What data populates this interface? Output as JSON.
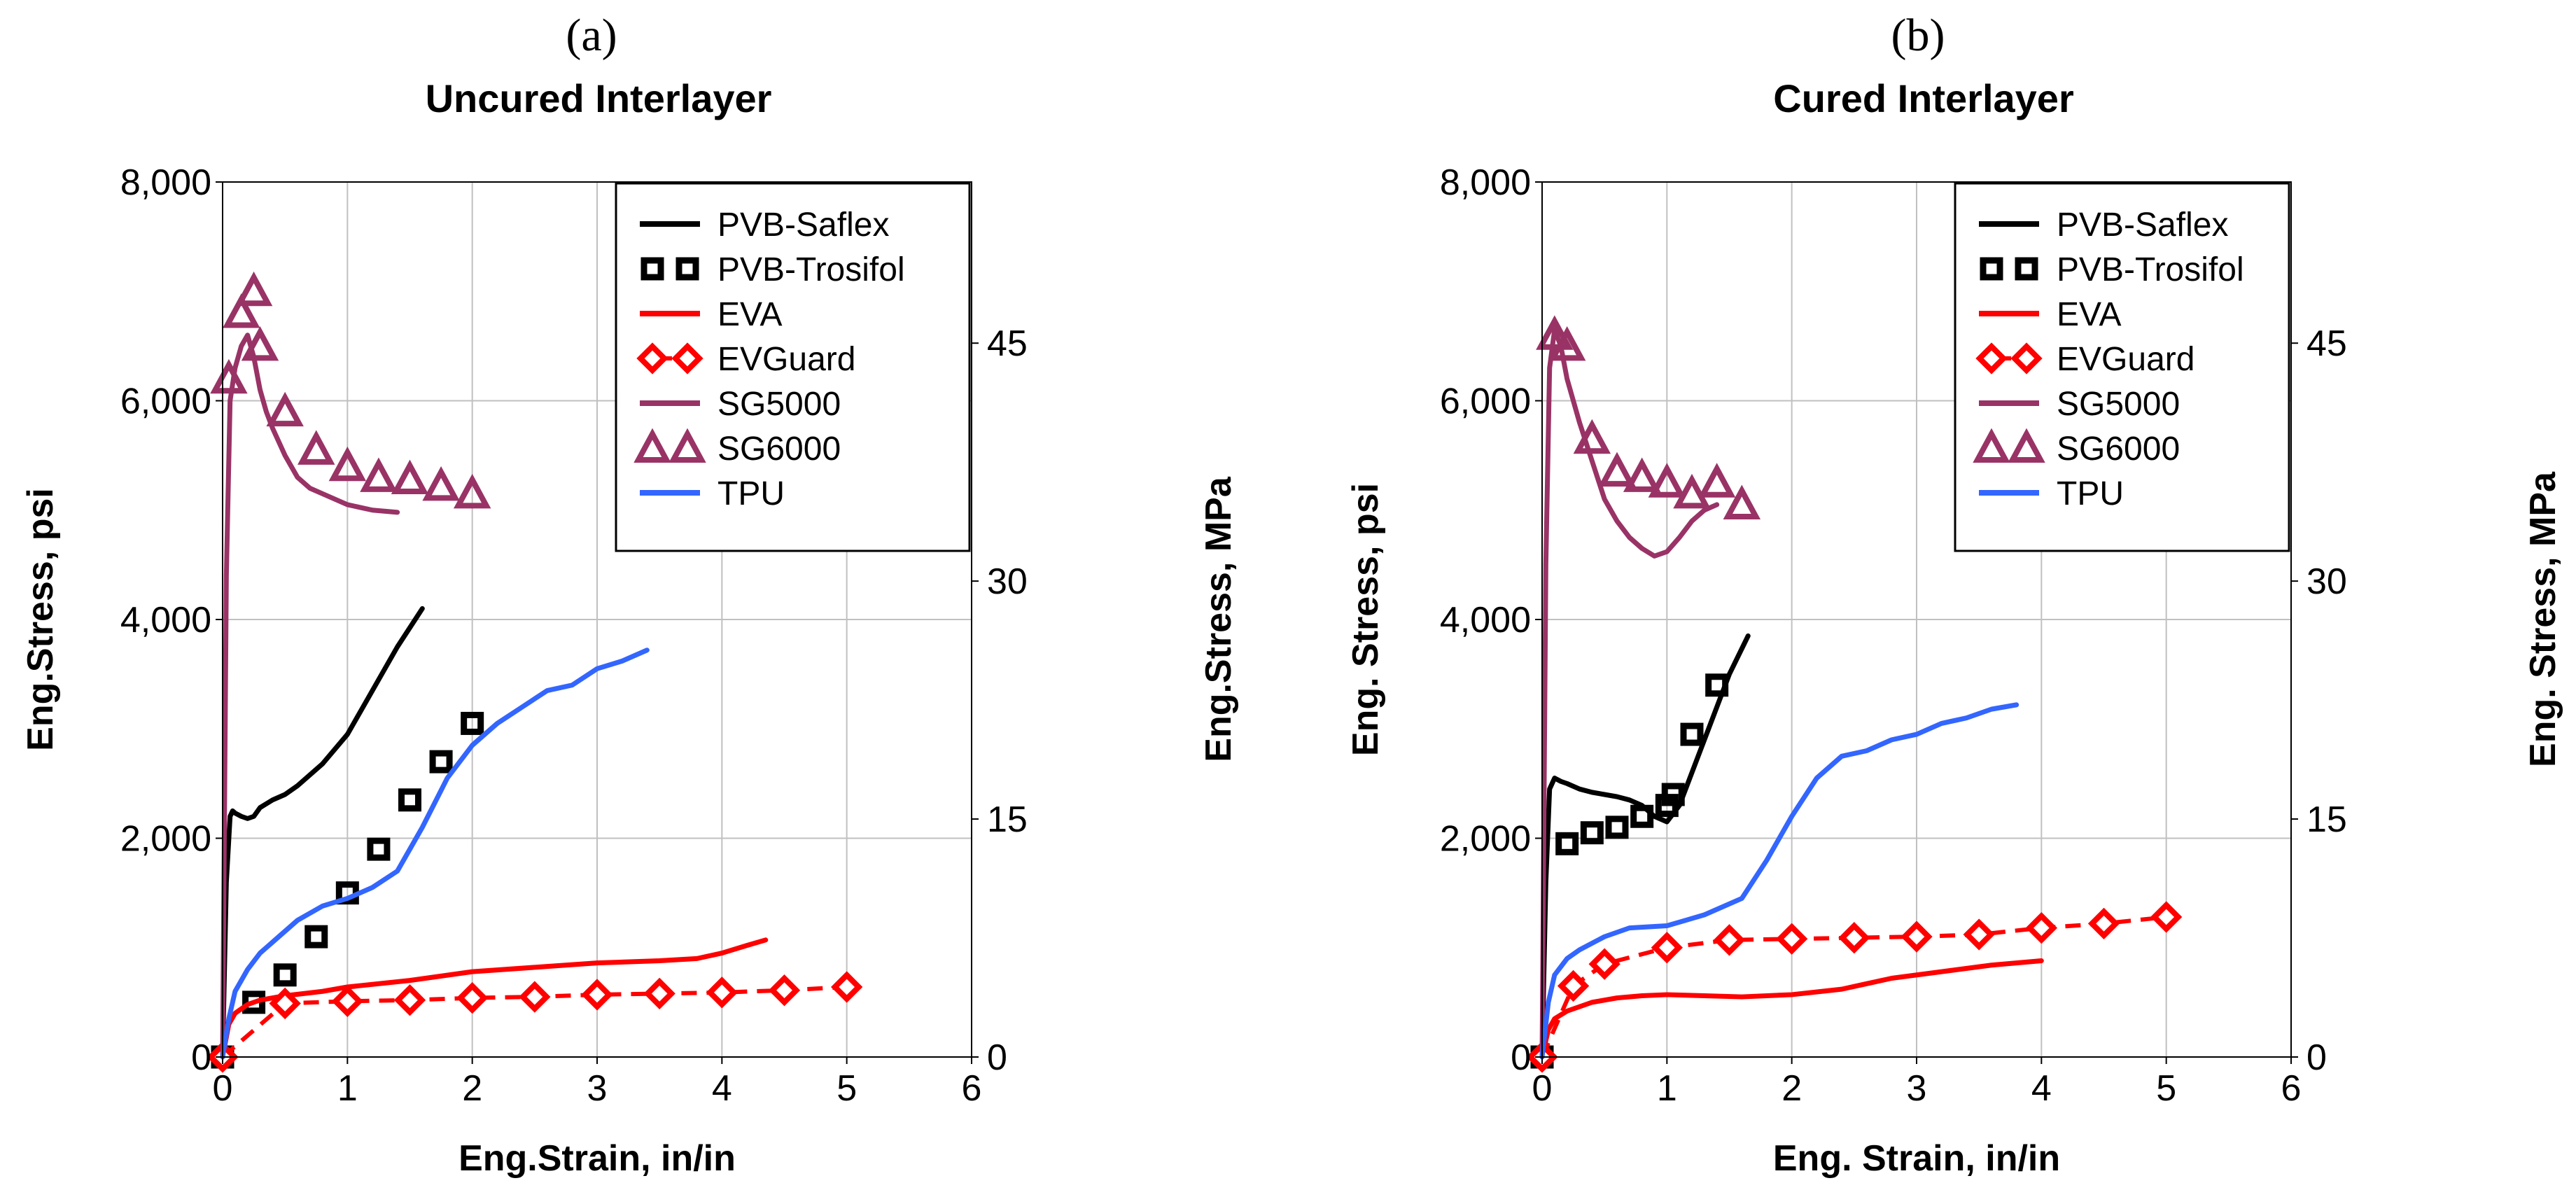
{
  "colors": {
    "PVB-Saflex": "#000000",
    "PVB-Trosifol": "#000000",
    "EVA": "#ff0000",
    "EVGuard": "#ff0000",
    "SG5000": "#993366",
    "SG6000": "#993366",
    "TPU": "#3366ff",
    "grid": "#c0c0c0"
  },
  "chart_data": [
    {
      "type": "line",
      "panel_label": "(a)",
      "title": "Uncured Interlayer",
      "xlabel": "Eng.Strain, in/in",
      "ylabel": "Eng.Stress, psi",
      "ylabel_right": "Eng.Stress, MPa",
      "xlim": [
        0,
        6
      ],
      "ylim": [
        0,
        8000
      ],
      "x_ticks": [
        "0",
        "1",
        "2",
        "3",
        "4",
        "5",
        "6"
      ],
      "y_ticks": [
        "0",
        "2,000",
        "4,000",
        "6,000",
        "8,000"
      ],
      "y2_ticks": [
        "0",
        "15",
        "30",
        "45"
      ],
      "y2_tick_psi": [
        0,
        2175.6,
        4351.1,
        6526.7
      ],
      "grid": true,
      "legend_position": "top-right",
      "series": [
        {
          "name": "PVB-Saflex",
          "style": "line",
          "x": [
            0,
            0.03,
            0.06,
            0.08,
            0.1,
            0.15,
            0.2,
            0.25,
            0.3,
            0.4,
            0.5,
            0.6,
            0.8,
            1.0,
            1.2,
            1.4,
            1.6
          ],
          "y": [
            0,
            1600,
            2200,
            2250,
            2230,
            2200,
            2180,
            2200,
            2280,
            2350,
            2400,
            2480,
            2680,
            2950,
            3350,
            3750,
            4100
          ]
        },
        {
          "name": "PVB-Trosifol",
          "style": "marker-square",
          "x": [
            0,
            0.25,
            0.5,
            0.75,
            1.0,
            1.25,
            1.5,
            1.75,
            2.0
          ],
          "y": [
            0,
            500,
            750,
            1100,
            1500,
            1900,
            2350,
            2700,
            3050
          ]
        },
        {
          "name": "EVA",
          "style": "line",
          "x": [
            0,
            0.05,
            0.1,
            0.2,
            0.3,
            0.5,
            0.8,
            1.0,
            1.5,
            2.0,
            2.5,
            3.0,
            3.5,
            3.8,
            4.0,
            4.2,
            4.35
          ],
          "y": [
            0,
            300,
            400,
            480,
            520,
            560,
            600,
            640,
            700,
            780,
            820,
            860,
            880,
            900,
            950,
            1020,
            1070
          ]
        },
        {
          "name": "EVGuard",
          "style": "marker-diamond-dashed",
          "x": [
            0,
            0.5,
            1.0,
            1.5,
            2.0,
            2.5,
            3.0,
            3.5,
            4.0,
            4.5,
            5.0
          ],
          "y": [
            0,
            490,
            510,
            520,
            540,
            550,
            570,
            580,
            590,
            610,
            640
          ]
        },
        {
          "name": "SG5000",
          "style": "line",
          "x": [
            0,
            0.03,
            0.06,
            0.1,
            0.15,
            0.2,
            0.25,
            0.3,
            0.35,
            0.4,
            0.5,
            0.6,
            0.7,
            0.8,
            1.0,
            1.2,
            1.4
          ],
          "y": [
            0,
            4400,
            6000,
            6300,
            6500,
            6600,
            6400,
            6100,
            5900,
            5750,
            5500,
            5300,
            5200,
            5150,
            5050,
            5000,
            4980
          ]
        },
        {
          "name": "SG6000",
          "style": "marker-triangle",
          "x": [
            0.05,
            0.15,
            0.25,
            0.3,
            0.5,
            0.75,
            1.0,
            1.25,
            1.5,
            1.75,
            2.0
          ],
          "y": [
            6200,
            6800,
            7000,
            6500,
            5900,
            5550,
            5400,
            5300,
            5280,
            5220,
            5150
          ]
        },
        {
          "name": "TPU",
          "style": "line",
          "x": [
            0,
            0.05,
            0.1,
            0.2,
            0.3,
            0.4,
            0.5,
            0.6,
            0.8,
            1.0,
            1.2,
            1.4,
            1.6,
            1.8,
            2.0,
            2.2,
            2.4,
            2.6,
            2.8,
            3.0,
            3.2,
            3.4
          ],
          "y": [
            0,
            350,
            600,
            800,
            950,
            1050,
            1150,
            1250,
            1380,
            1450,
            1550,
            1700,
            2100,
            2550,
            2850,
            3050,
            3200,
            3350,
            3400,
            3550,
            3620,
            3720
          ]
        }
      ]
    },
    {
      "type": "line",
      "panel_label": "(b)",
      "title": "Cured Interlayer",
      "xlabel": "Eng. Strain, in/in",
      "ylabel": "Eng. Stress, psi",
      "ylabel_right": "Eng. Stress, MPa",
      "xlim": [
        0,
        6
      ],
      "ylim": [
        0,
        8000
      ],
      "x_ticks": [
        "0",
        "1",
        "2",
        "3",
        "4",
        "5",
        "6"
      ],
      "y_ticks": [
        "0",
        "2,000",
        "4,000",
        "6,000",
        "8,000"
      ],
      "y2_ticks": [
        "0",
        "15",
        "30",
        "45"
      ],
      "y2_tick_psi": [
        0,
        2175.6,
        4351.1,
        6526.7
      ],
      "grid": true,
      "legend_position": "top-right",
      "series": [
        {
          "name": "PVB-Saflex",
          "style": "line",
          "x": [
            0,
            0.03,
            0.06,
            0.1,
            0.15,
            0.2,
            0.3,
            0.4,
            0.5,
            0.6,
            0.7,
            0.8,
            0.9,
            1.0,
            1.1,
            1.2,
            1.3,
            1.4,
            1.5,
            1.65
          ],
          "y": [
            0,
            1600,
            2450,
            2550,
            2520,
            2500,
            2450,
            2420,
            2400,
            2380,
            2350,
            2300,
            2200,
            2150,
            2300,
            2600,
            2900,
            3200,
            3500,
            3850
          ]
        },
        {
          "name": "PVB-Trosifol",
          "style": "marker-square",
          "x": [
            0,
            0.2,
            0.4,
            0.6,
            0.8,
            1.0,
            1.05,
            1.2,
            1.4
          ],
          "y": [
            0,
            1950,
            2050,
            2100,
            2200,
            2300,
            2400,
            2950,
            3400
          ]
        },
        {
          "name": "EVA",
          "style": "line",
          "x": [
            0,
            0.05,
            0.1,
            0.2,
            0.4,
            0.6,
            0.8,
            1.0,
            1.3,
            1.6,
            2.0,
            2.4,
            2.8,
            3.2,
            3.6,
            4.0
          ],
          "y": [
            0,
            250,
            350,
            420,
            500,
            540,
            560,
            570,
            560,
            550,
            570,
            620,
            720,
            780,
            840,
            880
          ]
        },
        {
          "name": "EVGuard",
          "style": "marker-diamond-dashed",
          "x": [
            0,
            0.25,
            0.5,
            1.0,
            1.5,
            2.0,
            2.5,
            3.0,
            3.5,
            4.0,
            4.5,
            5.0
          ],
          "y": [
            0,
            650,
            850,
            1000,
            1070,
            1080,
            1090,
            1100,
            1120,
            1180,
            1220,
            1280
          ]
        },
        {
          "name": "SG5000",
          "style": "line",
          "x": [
            0,
            0.03,
            0.06,
            0.1,
            0.15,
            0.2,
            0.3,
            0.4,
            0.5,
            0.6,
            0.7,
            0.8,
            0.9,
            1.0,
            1.1,
            1.2,
            1.3,
            1.4
          ],
          "y": [
            0,
            4500,
            6300,
            6650,
            6500,
            6200,
            5800,
            5450,
            5100,
            4900,
            4750,
            4650,
            4580,
            4620,
            4750,
            4900,
            5000,
            5050
          ]
        },
        {
          "name": "SG6000",
          "style": "marker-triangle",
          "x": [
            0.1,
            0.2,
            0.4,
            0.6,
            0.8,
            1.0,
            1.2,
            1.4,
            1.6
          ],
          "y": [
            6600,
            6500,
            5650,
            5350,
            5300,
            5250,
            5150,
            5250,
            5050
          ]
        },
        {
          "name": "TPU",
          "style": "line",
          "x": [
            0,
            0.05,
            0.1,
            0.2,
            0.3,
            0.5,
            0.7,
            1.0,
            1.3,
            1.6,
            1.8,
            2.0,
            2.2,
            2.4,
            2.6,
            2.8,
            3.0,
            3.2,
            3.4,
            3.6,
            3.8
          ],
          "y": [
            0,
            500,
            750,
            900,
            980,
            1100,
            1180,
            1200,
            1300,
            1450,
            1800,
            2200,
            2550,
            2750,
            2800,
            2900,
            2950,
            3050,
            3100,
            3180,
            3220
          ]
        }
      ]
    }
  ]
}
